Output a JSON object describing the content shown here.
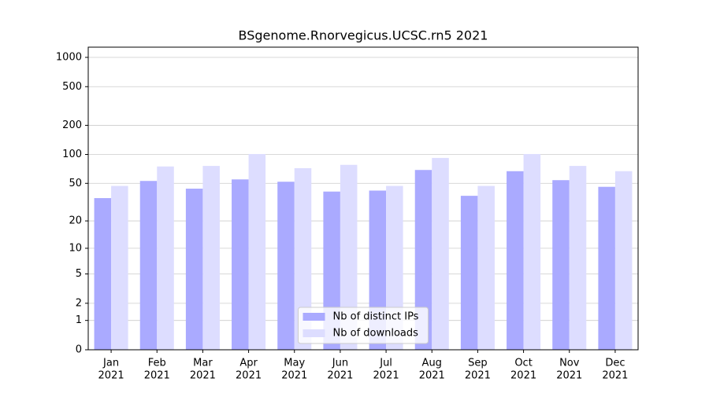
{
  "chart_data": {
    "type": "bar",
    "title": "BSgenome.Rnorvegicus.UCSC.rn5 2021",
    "categories": [
      [
        "Jan",
        "2021"
      ],
      [
        "Feb",
        "2021"
      ],
      [
        "Mar",
        "2021"
      ],
      [
        "Apr",
        "2021"
      ],
      [
        "May",
        "2021"
      ],
      [
        "Jun",
        "2021"
      ],
      [
        "Jul",
        "2021"
      ],
      [
        "Aug",
        "2021"
      ],
      [
        "Sep",
        "2021"
      ],
      [
        "Oct",
        "2021"
      ],
      [
        "Nov",
        "2021"
      ],
      [
        "Dec",
        "2021"
      ]
    ],
    "series": [
      {
        "name": "Nb of distinct IPs",
        "color": "#aaaaff",
        "values": [
          35,
          53,
          44,
          55,
          52,
          41,
          42,
          69,
          37,
          67,
          54,
          46
        ]
      },
      {
        "name": "Nb of downloads",
        "color": "#ddddff",
        "values": [
          47,
          75,
          76,
          101,
          72,
          78,
          47,
          92,
          47,
          101,
          76,
          67
        ]
      }
    ],
    "yscale": "symlog",
    "ylim": [
      0,
      1273
    ],
    "yticks": [
      0,
      1,
      2,
      5,
      10,
      20,
      50,
      100,
      200,
      500,
      1000
    ],
    "grid": true,
    "legend": "lower center"
  }
}
